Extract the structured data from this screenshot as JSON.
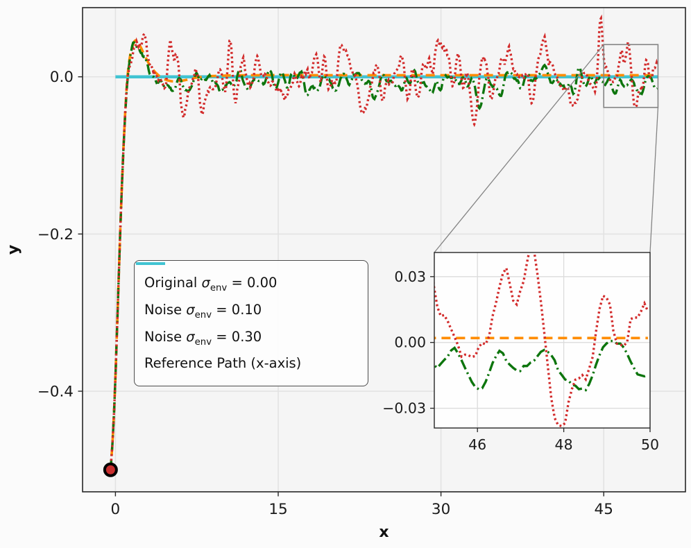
{
  "figure": {
    "background": "#fbfbfb",
    "axes_background": "#f5f5f5",
    "inset_background": "#fefefe",
    "grid_color": "#e2e2e2",
    "inset_grid_color": "#dcdcdc",
    "spine_color": "#262626",
    "text_color": "#1a1a1a",
    "zoom_box_color": "#848484"
  },
  "chart_data": {
    "type": "line",
    "title": "",
    "xlabel": "x",
    "ylabel": "y",
    "grid": true,
    "legend_position": "center left",
    "main_axes": {
      "xlim": [
        -3.03,
        52.53
      ],
      "ylim": [
        -0.528,
        0.088
      ],
      "x_ticks": [
        0,
        15,
        30,
        45
      ],
      "x_tick_labels": [
        "0",
        "15",
        "30",
        "45"
      ],
      "y_ticks": [
        0,
        -0.2,
        -0.4
      ],
      "y_tick_labels": [
        "0.0",
        "−0.2",
        "−0.4"
      ]
    },
    "inset_axes": {
      "xlim": [
        45,
        50
      ],
      "ylim": [
        -0.039,
        0.041
      ],
      "x_ticks": [
        46,
        48,
        50
      ],
      "x_tick_labels": [
        "46",
        "48",
        "50"
      ],
      "y_ticks": [
        0.03,
        0.0,
        -0.03
      ],
      "y_tick_labels": [
        "0.03",
        "0.00",
        "−0.03"
      ],
      "zoom_region_x": [
        45,
        50
      ],
      "zoom_region_y": [
        -0.039,
        0.041
      ]
    },
    "base_trajectory_keypoints": [
      [
        -0.45,
        -0.5
      ],
      [
        -0.25,
        -0.46
      ],
      [
        -0.05,
        -0.4
      ],
      [
        0.15,
        -0.32
      ],
      [
        0.35,
        -0.235
      ],
      [
        0.55,
        -0.155
      ],
      [
        0.75,
        -0.088
      ],
      [
        0.95,
        -0.033
      ],
      [
        1.15,
        0.006
      ],
      [
        1.4,
        0.03
      ],
      [
        1.8,
        0.046
      ],
      [
        2.2,
        0.041
      ],
      [
        2.7,
        0.027
      ],
      [
        3.2,
        0.014
      ],
      [
        3.8,
        0.004
      ],
      [
        4.5,
        -0.003
      ],
      [
        5.5,
        -0.006
      ],
      [
        6.5,
        -0.004
      ],
      [
        7.5,
        -0.001
      ],
      [
        9,
        0.001
      ],
      [
        12,
        0.002
      ],
      [
        20,
        0.002
      ],
      [
        30,
        0.002
      ],
      [
        40,
        0.002
      ],
      [
        50,
        0.002
      ]
    ],
    "series": [
      {
        "id": "original",
        "label": "Original σ_env = 0.00",
        "color": "#ff8c00",
        "linestyle": "dashed",
        "linewidth": 3.6,
        "noise_amp": 0,
        "bias": 0,
        "seed": 1,
        "features": []
      },
      {
        "id": "noise-010",
        "label": "Noise σ_env = 0.10",
        "color": "#0d750d",
        "linestyle": "dashdot",
        "linewidth": 3.4,
        "noise_amp": 0.0075,
        "bias": -0.006,
        "seed": 11,
        "features": [
          {
            "x": 10,
            "a": -0.012,
            "w": 0.5
          },
          {
            "x": 14,
            "a": 0.008,
            "w": 0.5
          },
          {
            "x": 18,
            "a": -0.01,
            "w": 0.5
          },
          {
            "x": 24,
            "a": -0.014,
            "w": 0.6
          },
          {
            "x": 28,
            "a": 0.008,
            "w": 0.5
          },
          {
            "x": 33.5,
            "a": -0.018,
            "w": 0.5
          },
          {
            "x": 36.5,
            "a": 0.006,
            "w": 0.4
          },
          {
            "x": 39.5,
            "a": 0.014,
            "w": 0.5
          },
          {
            "x": 43,
            "a": 0.01,
            "w": 0.4
          },
          {
            "x": 46,
            "a": -0.004,
            "w": 0.6
          },
          {
            "x": 48.2,
            "a": -0.021,
            "w": 0.45
          },
          {
            "x": 49.6,
            "a": -0.002,
            "w": 0.3
          }
        ]
      },
      {
        "id": "noise-030",
        "label": "Noise σ_env = 0.30",
        "color": "#d22a2a",
        "linestyle": "dotted",
        "linewidth": 3.4,
        "noise_amp": 0.02,
        "bias": -0.001,
        "seed": 5,
        "features": [
          {
            "x": 5,
            "a": 0.05,
            "w": 0.3
          },
          {
            "x": 6.2,
            "a": -0.018,
            "w": 0.35
          },
          {
            "x": 8.1,
            "a": -0.028,
            "w": 0.5
          },
          {
            "x": 10.5,
            "a": 0.022,
            "w": 0.4
          },
          {
            "x": 13.5,
            "a": 0.028,
            "w": 0.45
          },
          {
            "x": 16,
            "a": -0.02,
            "w": 0.5
          },
          {
            "x": 18.5,
            "a": 0.025,
            "w": 0.4
          },
          {
            "x": 21,
            "a": 0.03,
            "w": 0.4
          },
          {
            "x": 23,
            "a": -0.03,
            "w": 0.5
          },
          {
            "x": 26,
            "a": 0.02,
            "w": 0.4
          },
          {
            "x": 28,
            "a": -0.018,
            "w": 0.4
          },
          {
            "x": 30,
            "a": 0.045,
            "w": 0.5
          },
          {
            "x": 31.5,
            "a": 0.02,
            "w": 0.3
          },
          {
            "x": 33.5,
            "a": -0.022,
            "w": 0.5
          },
          {
            "x": 36,
            "a": 0.02,
            "w": 0.4
          },
          {
            "x": 38.5,
            "a": -0.025,
            "w": 0.45
          },
          {
            "x": 40.5,
            "a": 0.022,
            "w": 0.35
          },
          {
            "x": 42,
            "a": -0.02,
            "w": 0.4
          },
          {
            "x": 44.7,
            "a": 0.055,
            "w": 0.25
          },
          {
            "x": 45.3,
            "a": 0.028,
            "w": 0.3
          },
          {
            "x": 46.5,
            "a": 0.02,
            "w": 0.35
          },
          {
            "x": 47.3,
            "a": 0.024,
            "w": 0.35
          },
          {
            "x": 48.3,
            "a": -0.024,
            "w": 0.45
          },
          {
            "x": 50,
            "a": 0.014,
            "w": 0.25
          }
        ]
      },
      {
        "id": "reference",
        "label": "Reference Path (x-axis)",
        "color": "#41c3d2",
        "linestyle": "solid",
        "linewidth": 4.5,
        "reference_line": {
          "y": 0,
          "x_start": 0,
          "x_end": 50
        }
      }
    ],
    "start_marker": {
      "x": -0.45,
      "y": -0.5,
      "fill": "#c92f2f",
      "edge": "#000000",
      "radius": 8.5
    }
  }
}
